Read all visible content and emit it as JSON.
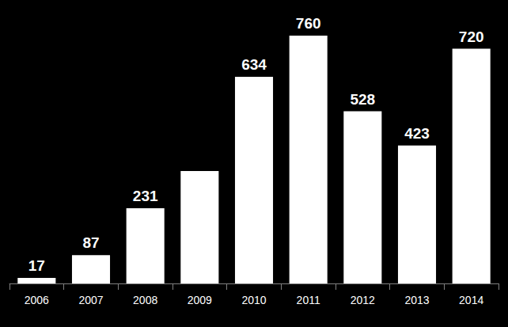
{
  "chart_data": {
    "type": "bar",
    "categories": [
      "2006",
      "2007",
      "2008",
      "2009",
      "2010",
      "2011",
      "2012",
      "2013",
      "2014"
    ],
    "values": [
      17,
      87,
      231,
      345,
      634,
      760,
      528,
      423,
      720
    ],
    "value_labels": [
      "17",
      "87",
      "231",
      null,
      "634",
      "760",
      "528",
      "423",
      "720"
    ],
    "color": "#ffffff",
    "ylim": [
      0,
      850
    ],
    "grid": false,
    "data_labels": true,
    "tick_labels": "x"
  }
}
